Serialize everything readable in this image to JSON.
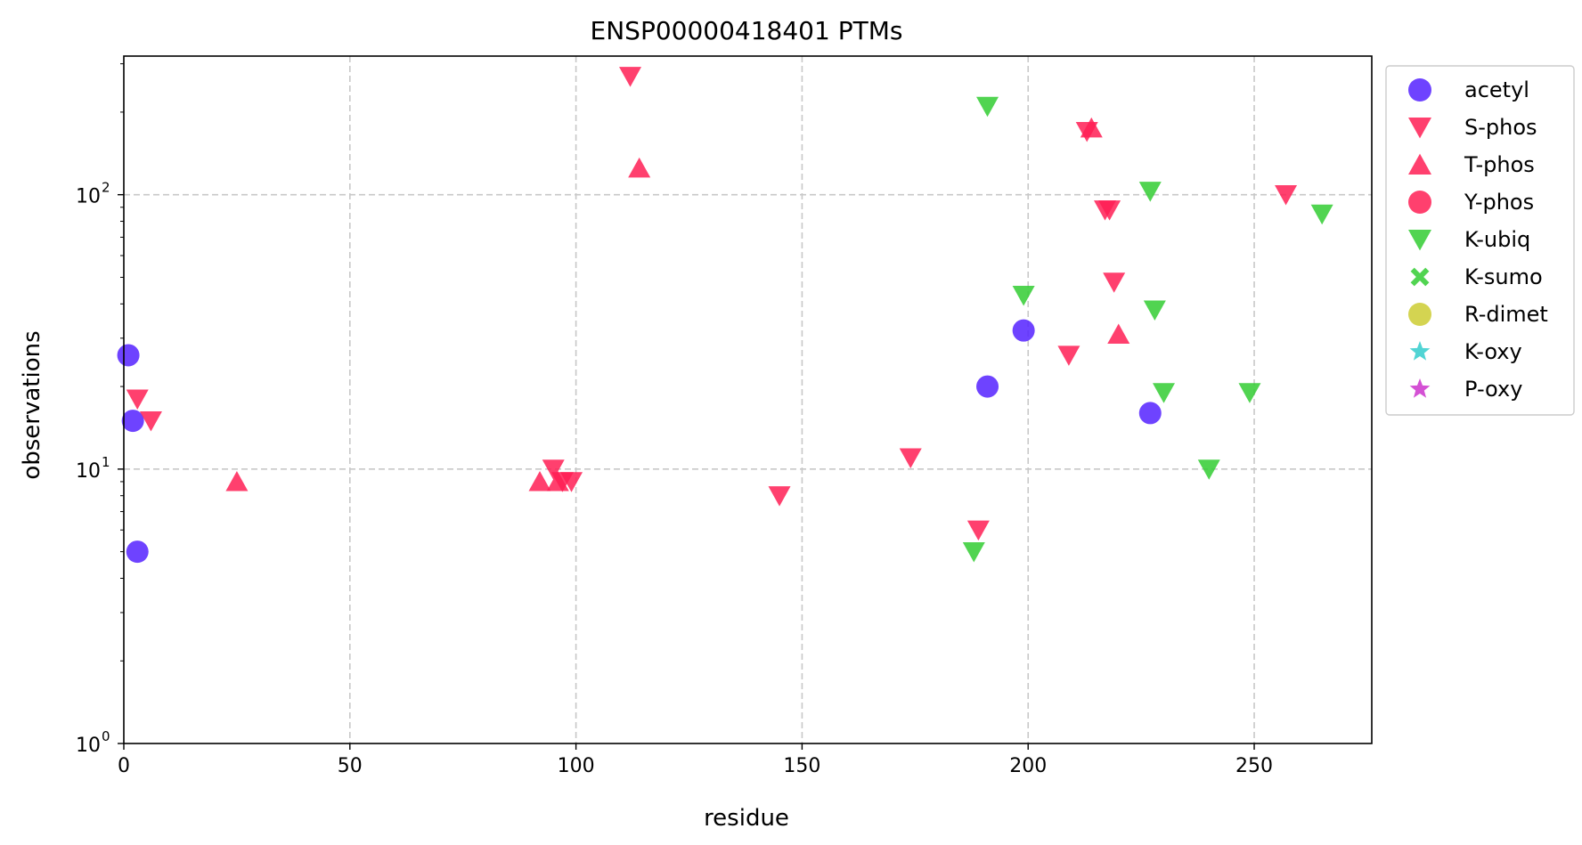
{
  "chart_data": {
    "type": "scatter",
    "title": "ENSP00000418401 PTMs",
    "xlabel": "residue",
    "ylabel": "observations",
    "xlim": [
      0,
      276
    ],
    "ylim": [
      1,
      320
    ],
    "y_scale": "log",
    "x_ticks": [
      0,
      50,
      100,
      150,
      200,
      250
    ],
    "x_tick_labels": [
      "0",
      "50",
      "100",
      "150",
      "200",
      "250"
    ],
    "y_ticks": [
      1,
      10,
      100
    ],
    "y_tick_labels": [
      {
        "base": "10",
        "exp": "0"
      },
      {
        "base": "10",
        "exp": "1"
      },
      {
        "base": "10",
        "exp": "2"
      }
    ],
    "grid": true,
    "legend_position": "outside-right",
    "series": [
      {
        "name": "acetyl",
        "marker": "circle",
        "color": "#5522ff",
        "points": [
          [
            1,
            26
          ],
          [
            2,
            15
          ],
          [
            3,
            5
          ],
          [
            191,
            20
          ],
          [
            199,
            32
          ],
          [
            227,
            16
          ]
        ]
      },
      {
        "name": "S-phos",
        "marker": "triangle-down",
        "color": "#ff1f55",
        "points": [
          [
            3,
            18
          ],
          [
            6,
            15
          ],
          [
            95,
            10
          ],
          [
            97,
            9
          ],
          [
            99,
            9
          ],
          [
            112,
            270
          ],
          [
            145,
            8
          ],
          [
            174,
            11
          ],
          [
            189,
            6
          ],
          [
            209,
            26
          ],
          [
            213,
            170
          ],
          [
            217,
            88
          ],
          [
            218,
            88
          ],
          [
            219,
            48
          ],
          [
            257,
            100
          ]
        ]
      },
      {
        "name": "T-phos",
        "marker": "triangle-up",
        "color": "#ff1f55",
        "points": [
          [
            25,
            9
          ],
          [
            92,
            9
          ],
          [
            96,
            9
          ],
          [
            114,
            125
          ],
          [
            214,
            175
          ],
          [
            220,
            31
          ]
        ]
      },
      {
        "name": "Y-phos",
        "marker": "circle",
        "color": "#ff1f55",
        "points": []
      },
      {
        "name": "K-ubiq",
        "marker": "triangle-down",
        "color": "#33cc33",
        "points": [
          [
            188,
            5
          ],
          [
            191,
            210
          ],
          [
            199,
            43
          ],
          [
            227,
            103
          ],
          [
            228,
            38
          ],
          [
            230,
            19
          ],
          [
            240,
            10
          ],
          [
            249,
            19
          ],
          [
            265,
            85
          ]
        ]
      },
      {
        "name": "K-sumo",
        "marker": "x",
        "color": "#33cc33",
        "points": []
      },
      {
        "name": "R-dimet",
        "marker": "circle",
        "color": "#cccc33",
        "points": []
      },
      {
        "name": "K-oxy",
        "marker": "star",
        "color": "#33cccc",
        "points": []
      },
      {
        "name": "P-oxy",
        "marker": "star",
        "color": "#cc33cc",
        "points": []
      }
    ]
  }
}
